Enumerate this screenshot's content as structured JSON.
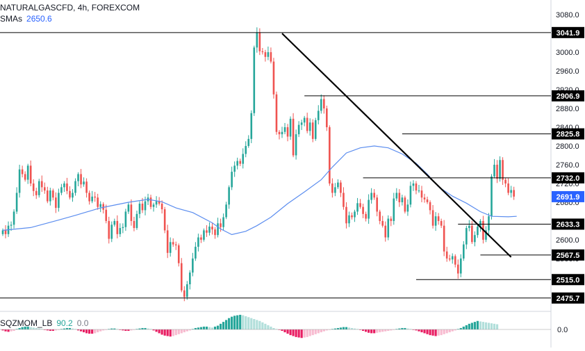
{
  "header": {
    "symbol_line": "NATURALGASCFD, 4h, FOREXCOM",
    "sma_label": "SMAs",
    "sma_value": "2650.6"
  },
  "indicator": {
    "label": "SQZMOM_LB",
    "value1": "90.2",
    "value2": "0.0",
    "axis_zero": "0.0"
  },
  "colors": {
    "up": "#26a69a",
    "down": "#ef5350",
    "sma": "#5b8def",
    "level_line": "#000000",
    "price_tag": "#2962ff",
    "mom_up_strong": "#26a69a",
    "mom_up_weak": "#b2dfdb",
    "mom_down_strong": "#e91e63",
    "mom_down_weak": "#f8bbd0"
  },
  "chart_data": {
    "type": "candlestick",
    "ylim": [
      2465,
      3095
    ],
    "y_ticks": [
      "3080.0",
      "3000.0",
      "2960.0",
      "2920.0",
      "2880.0",
      "2840.0",
      "2800.0",
      "2760.0",
      "2720.0",
      "2680.0",
      "2640.0",
      "2600.0",
      "2560.0"
    ],
    "levels": [
      {
        "label": "3041.9",
        "value": 3041.9
      },
      {
        "label": "2906.9",
        "value": 2906.9
      },
      {
        "label": "2825.8",
        "value": 2825.8
      },
      {
        "label": "2732.0",
        "value": 2732.0
      },
      {
        "label": "2633.3",
        "value": 2633.3
      },
      {
        "label": "2567.5",
        "value": 2567.5
      },
      {
        "label": "2515.0",
        "value": 2515.0
      },
      {
        "label": "2475.7",
        "value": 2475.7
      }
    ],
    "last_price": {
      "label": "2691.9",
      "value": 2691.9
    },
    "trendline": {
      "from": [
        100,
        3040
      ],
      "to": [
        182,
        2563
      ]
    },
    "closes": [
      2620,
      2612,
      2630,
      2632,
      2660,
      2700,
      2750,
      2740,
      2728,
      2758,
      2720,
      2704,
      2695,
      2725,
      2712,
      2705,
      2682,
      2705,
      2690,
      2668,
      2700,
      2712,
      2720,
      2704,
      2690,
      2700,
      2725,
      2740,
      2718,
      2724,
      2700,
      2682,
      2692,
      2690,
      2670,
      2676,
      2664,
      2640,
      2602,
      2632,
      2640,
      2612,
      2625,
      2627,
      2660,
      2675,
      2640,
      2625,
      2655,
      2677,
      2663,
      2682,
      2690,
      2670,
      2675,
      2682,
      2677,
      2665,
      2620,
      2572,
      2595,
      2590,
      2588,
      2550,
      2492,
      2478,
      2505,
      2530,
      2560,
      2585,
      2605,
      2600,
      2620,
      2615,
      2628,
      2622,
      2610,
      2635,
      2627,
      2648,
      2675,
      2712,
      2745,
      2758,
      2768,
      2762,
      2783,
      2800,
      2815,
      2870,
      3010,
      3042,
      3002,
      3000,
      2990,
      3000,
      2980,
      2910,
      2830,
      2825,
      2830,
      2840,
      2820,
      2858,
      2780,
      2825,
      2845,
      2850,
      2860,
      2832,
      2850,
      2815,
      2855,
      2875,
      2900,
      2880,
      2840,
      2720,
      2700,
      2712,
      2722,
      2700,
      2670,
      2635,
      2652,
      2648,
      2660,
      2678,
      2670,
      2655,
      2645,
      2685,
      2700,
      2690,
      2660,
      2640,
      2630,
      2605,
      2645,
      2640,
      2688,
      2700,
      2680,
      2690,
      2660,
      2675,
      2715,
      2720,
      2705,
      2705,
      2690,
      2686,
      2680,
      2663,
      2630,
      2650,
      2640,
      2630,
      2575,
      2560,
      2558,
      2565,
      2547,
      2528,
      2560,
      2590,
      2625,
      2630,
      2595,
      2610,
      2628,
      2640,
      2600,
      2620,
      2650,
      2735,
      2760,
      2730,
      2770,
      2728,
      2720,
      2700,
      2706,
      2692
    ],
    "sma": [
      [
        0,
        2620
      ],
      [
        10,
        2626
      ],
      [
        20,
        2642
      ],
      [
        26,
        2652
      ],
      [
        35,
        2668
      ],
      [
        45,
        2680
      ],
      [
        52,
        2686
      ],
      [
        57,
        2681
      ],
      [
        62,
        2668
      ],
      [
        68,
        2658
      ],
      [
        75,
        2636
      ],
      [
        78,
        2623
      ],
      [
        82,
        2611
      ],
      [
        87,
        2618
      ],
      [
        91,
        2630
      ],
      [
        96,
        2648
      ],
      [
        102,
        2677
      ],
      [
        108,
        2702
      ],
      [
        114,
        2728
      ],
      [
        118,
        2755
      ],
      [
        123,
        2785
      ],
      [
        128,
        2796
      ],
      [
        133,
        2800
      ],
      [
        138,
        2796
      ],
      [
        143,
        2783
      ],
      [
        148,
        2763
      ],
      [
        152,
        2740
      ],
      [
        156,
        2713
      ],
      [
        161,
        2693
      ],
      [
        166,
        2678
      ],
      [
        171,
        2660
      ],
      [
        175,
        2650
      ],
      [
        181,
        2649
      ],
      [
        184,
        2650
      ]
    ],
    "momentum": [
      -2,
      -4,
      -5,
      -4,
      -3,
      1,
      3,
      5,
      6,
      6,
      5,
      4,
      3,
      2,
      1,
      -1,
      -2,
      -3,
      -3,
      -2,
      -1,
      1,
      2,
      3,
      3,
      2,
      1,
      -2,
      -4,
      -6,
      -8,
      -9,
      -9,
      -8,
      -6,
      -4,
      -2,
      -1,
      1,
      2,
      2,
      1,
      -1,
      -2,
      -3,
      -3,
      -2,
      -1,
      1,
      2,
      3,
      3,
      2,
      1,
      -2,
      -5,
      -8,
      -11,
      -13,
      -14,
      -15,
      -14,
      -12,
      -10,
      -8,
      -6,
      -4,
      -2,
      1,
      3,
      4,
      5,
      6,
      6,
      5,
      4,
      6,
      8,
      12,
      16,
      20,
      24,
      27,
      29,
      30,
      31,
      30,
      28,
      26,
      24,
      22,
      20,
      18,
      15,
      12,
      9,
      6,
      3,
      1,
      -1,
      -3,
      -6,
      -9,
      -12,
      -14,
      -16,
      -17,
      -18,
      -17,
      -16,
      -14,
      -12,
      -10,
      -8,
      -6,
      -4,
      -2,
      -1,
      1,
      2,
      3,
      4,
      5,
      5,
      4,
      3,
      2,
      1,
      -1,
      -3,
      -5,
      -7,
      -8,
      -8,
      -7,
      -6,
      -5,
      -4,
      -3,
      -2,
      -1,
      1,
      2,
      3,
      3,
      2,
      1,
      -1,
      -2,
      -4,
      -6,
      -8,
      -10,
      -12,
      -13,
      -14,
      -13,
      -12,
      -10,
      -8,
      -6,
      -4,
      -2,
      1,
      3,
      6,
      9,
      12,
      14,
      16,
      18,
      17,
      16,
      15,
      14,
      13,
      12,
      11
    ]
  }
}
